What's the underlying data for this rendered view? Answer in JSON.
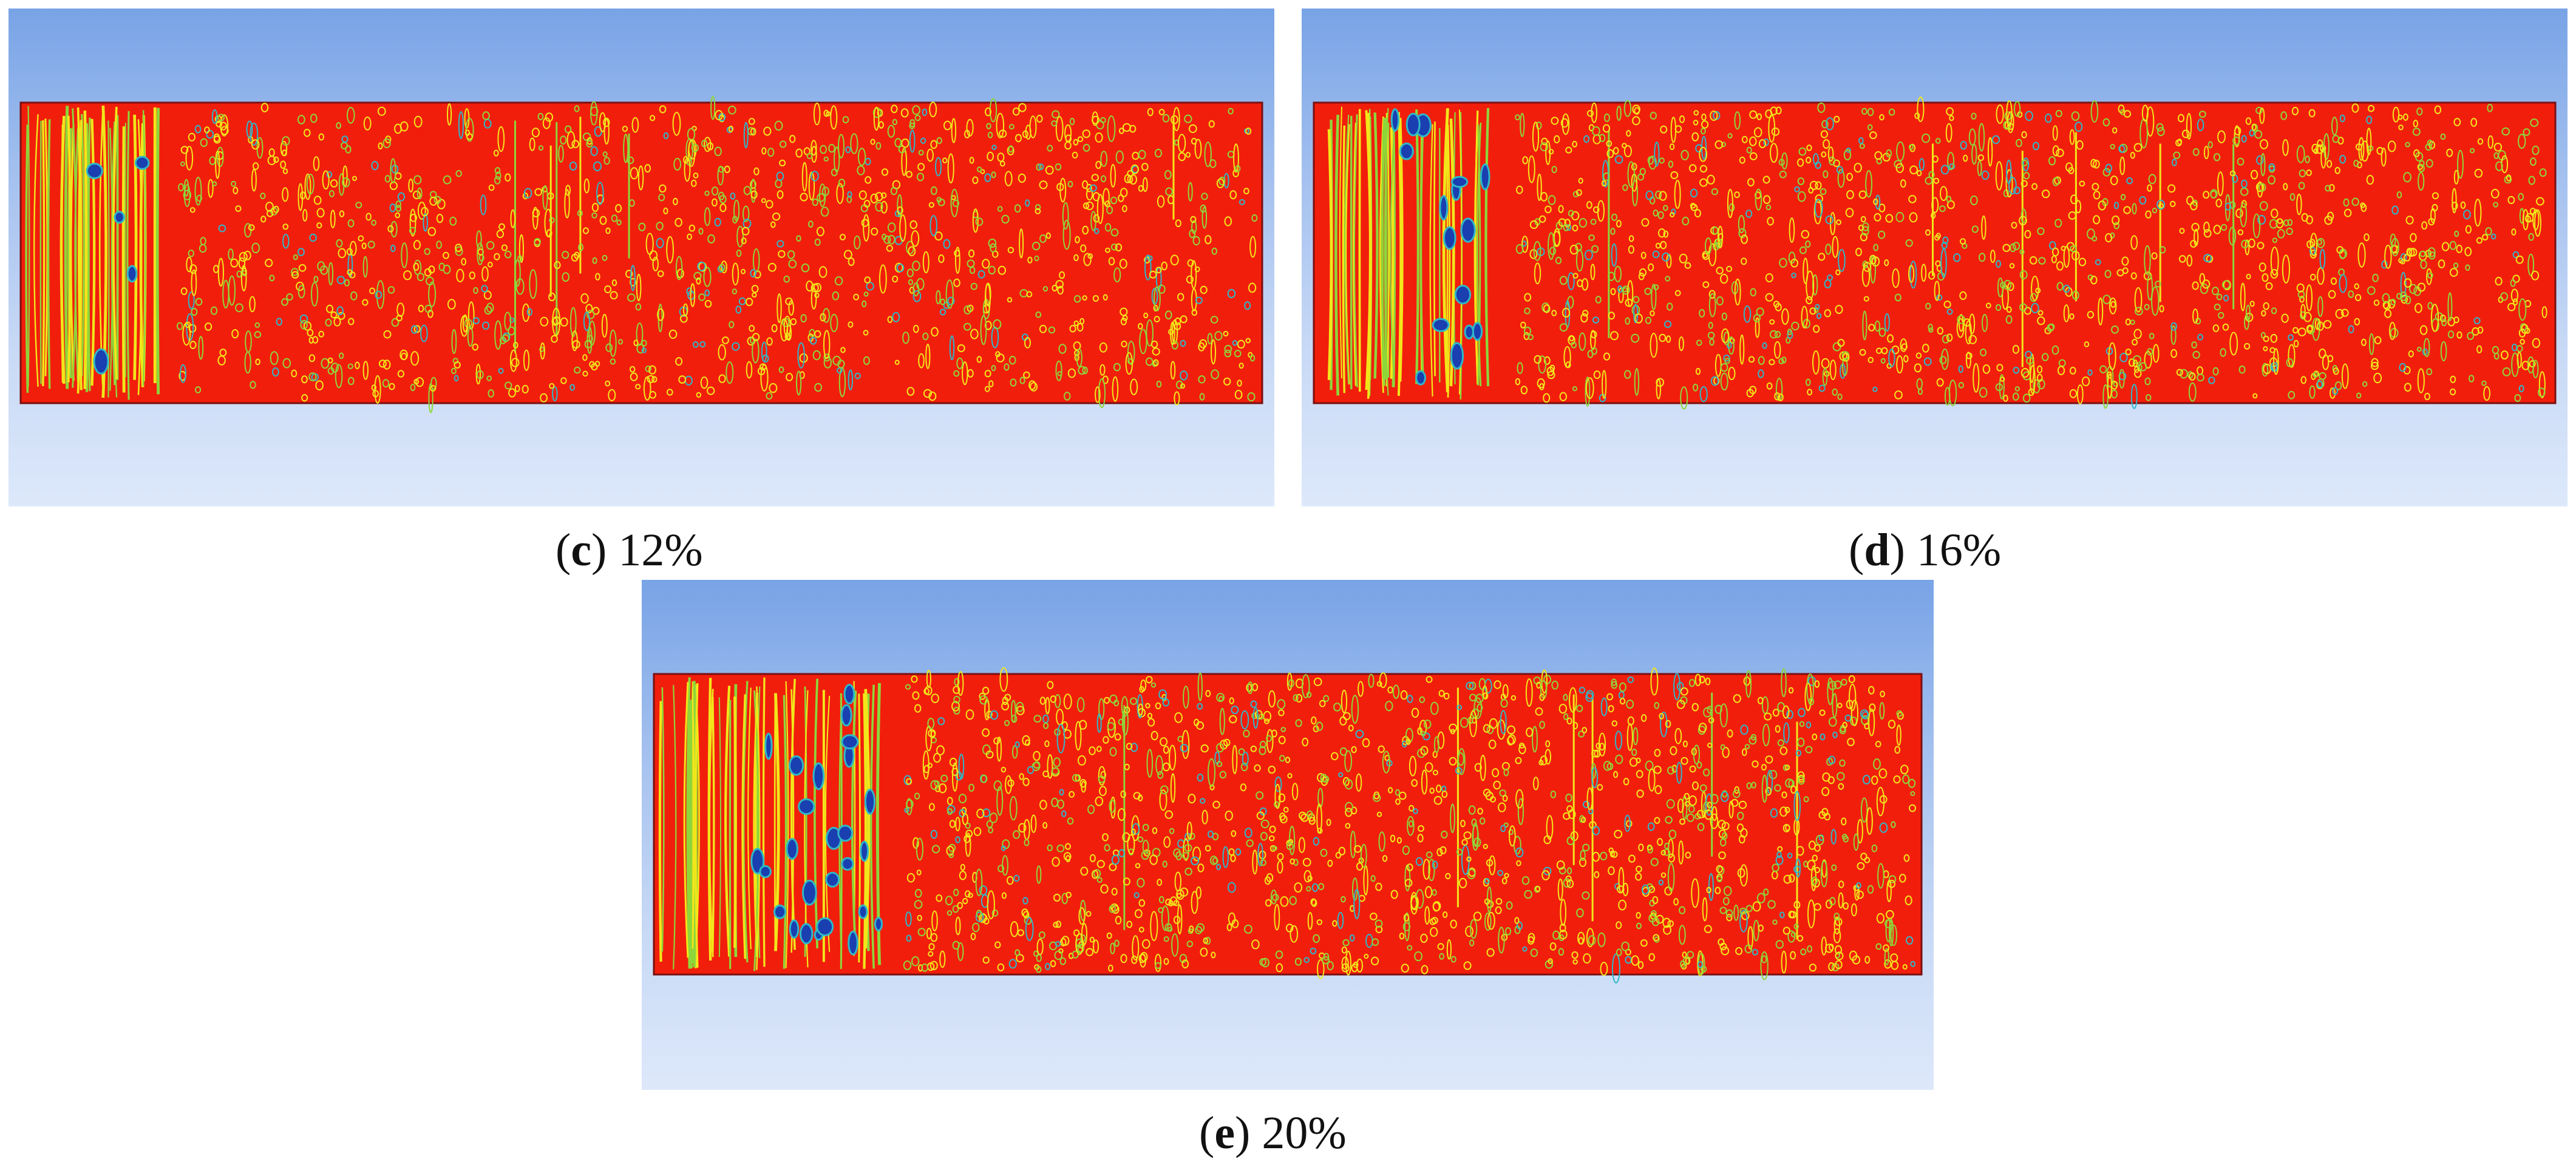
{
  "panels": [
    {
      "letter": "c",
      "value": "12%",
      "caption_suffix": ") 12%",
      "void_band_fraction": 0.12
    },
    {
      "letter": "d",
      "value": "16%",
      "caption_suffix": ") 16%",
      "void_band_fraction": 0.16
    },
    {
      "letter": "e",
      "value": "20%",
      "caption_suffix": ") 20%",
      "void_band_fraction": 0.2
    }
  ],
  "colors": {
    "background_top": "#78a3e6",
    "background_bottom": "#dde8fa",
    "liquid": "#f21e0c",
    "bubble_edge_yellow": "#f2e61a",
    "bubble_edge_green": "#8ed63a",
    "bubble_core_cyan": "#2fb8c8",
    "bubble_core_blue": "#1a3fb0"
  }
}
